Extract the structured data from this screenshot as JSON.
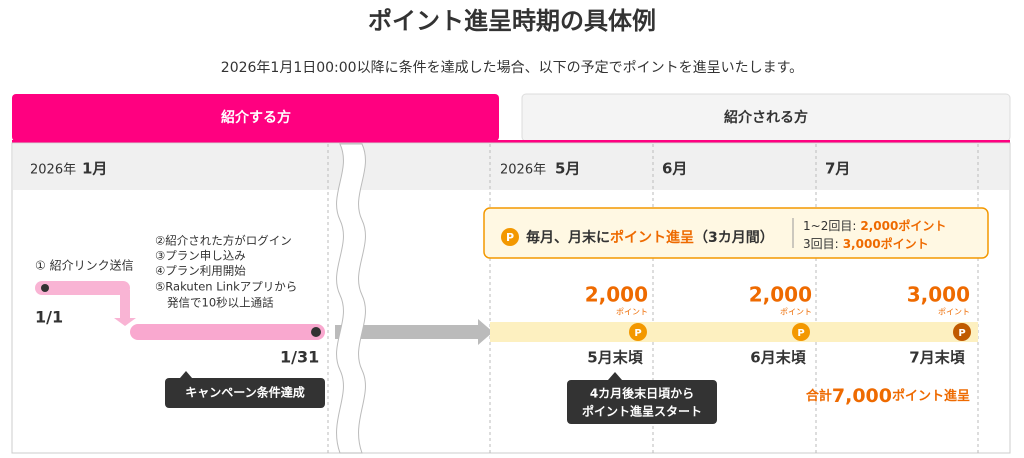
{
  "header": {
    "title": "ポイント進呈時期の具体例",
    "subtitle": "2026年1月1日00:00以降に条件を達成した場合、以下の予定でポイントを進呈いたします。"
  },
  "tabs": [
    "紹介する方",
    "紹介される方"
  ],
  "timeline": {
    "months": [
      {
        "year": "2026年",
        "month": "1月"
      },
      {
        "year": "2026年",
        "month": "5月"
      },
      {
        "month": "6月"
      },
      {
        "month": "7月"
      }
    ]
  },
  "steps": {
    "first": "① 紹介リンク送信",
    "start_date": "1/1",
    "list": [
      "②紹介された方がログイン",
      "③プラン申し込み",
      "④プラン利用開始",
      "⑤Rakuten Linkアプリから",
      "発信で10秒以上通話"
    ],
    "end_date": "1/31",
    "badge": "キャンペーン条件達成"
  },
  "banner": {
    "icon": "P",
    "lead": "毎月、月末に",
    "highlight": "ポイント進呈",
    "duration": "（3カ月間）",
    "details": [
      {
        "label": "1~2回目:",
        "value": "2,000ポイント"
      },
      {
        "label": "3回目:",
        "value": "3,000ポイント"
      }
    ]
  },
  "payouts": [
    {
      "amount": "2,000",
      "unit": "ポイント",
      "icon": "P",
      "when": "5月末頃"
    },
    {
      "amount": "2,000",
      "unit": "ポイント",
      "icon": "P",
      "when": "6月末頃"
    },
    {
      "amount": "3,000",
      "unit": "ポイント",
      "icon": "P",
      "when": "7月末頃"
    }
  ],
  "start_note": [
    "4カ月後末日頃から",
    "ポイント進呈スタート"
  ],
  "total": {
    "prefix": "合計",
    "amount": "7,000",
    "suffix": "ポイント進呈"
  }
}
